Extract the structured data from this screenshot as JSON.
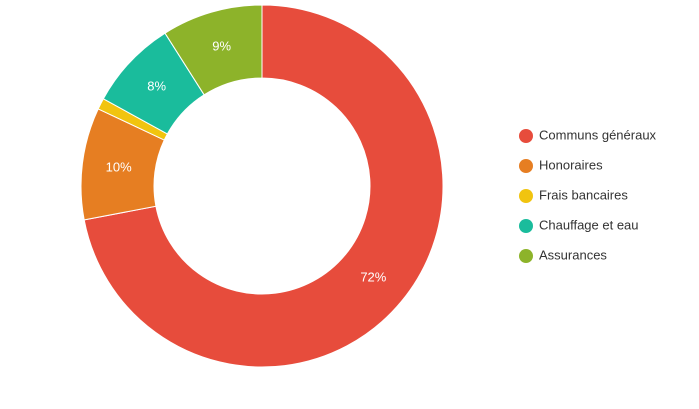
{
  "chart_data": {
    "type": "pie",
    "categories": [
      "Communs généraux",
      "Honoraires",
      "Frais bancaires",
      "Chauffage et eau",
      "Assurances"
    ],
    "values": [
      72,
      10,
      1,
      8,
      9
    ],
    "value_labels": [
      "72%",
      "10%",
      null,
      "8%",
      "9%"
    ],
    "colors": [
      "#e74c3c",
      "#e67e22",
      "#f1c40f",
      "#1abc9c",
      "#8db32a"
    ],
    "donut": true,
    "legend": "right"
  }
}
